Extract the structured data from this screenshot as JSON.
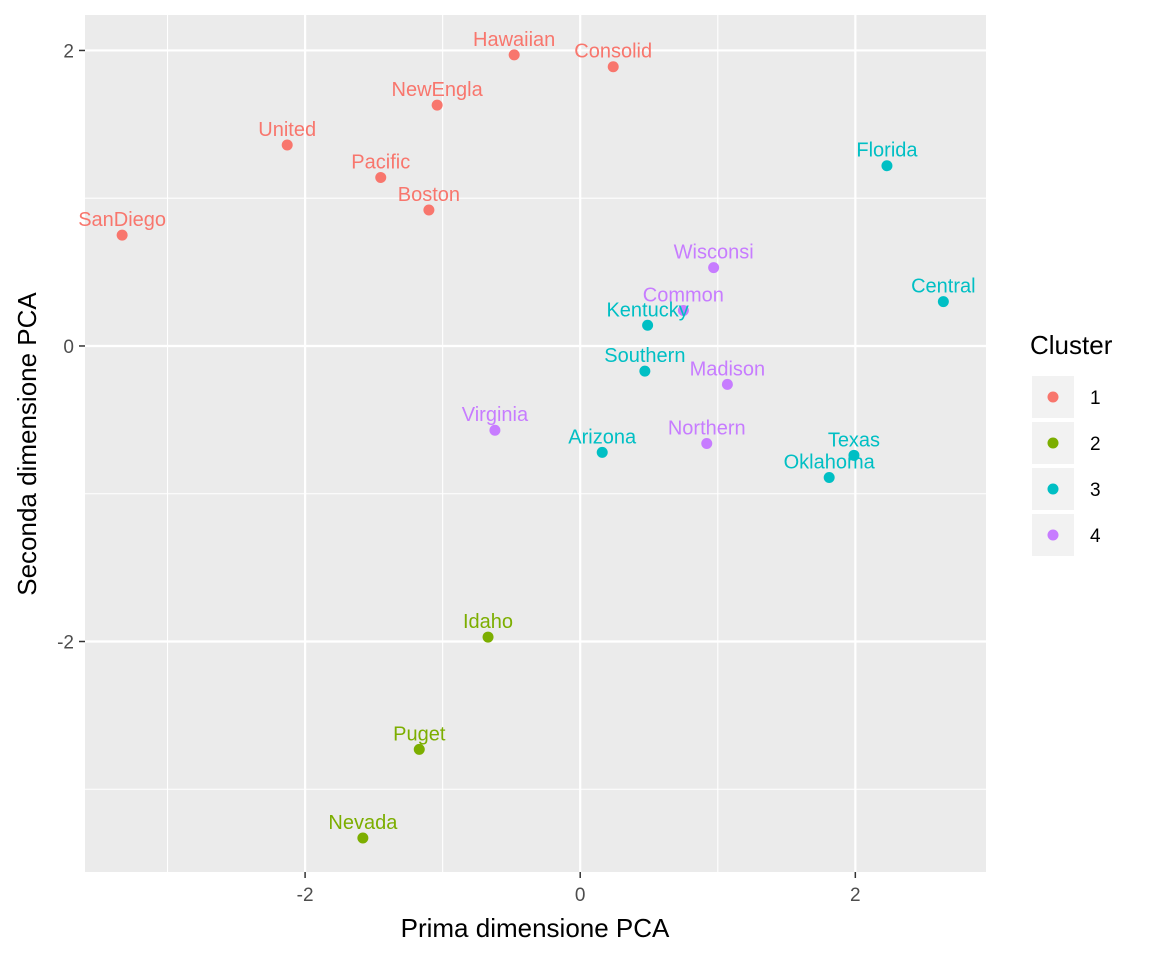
{
  "chart_data": {
    "type": "scatter",
    "title": "",
    "xlabel": "Prima dimensione PCA",
    "ylabel": "Seconda dimensione PCA",
    "xlim": [
      -3.6,
      2.95
    ],
    "ylim": [
      -3.56,
      2.24
    ],
    "xticks": [
      -2,
      0,
      2
    ],
    "yticks": [
      -2,
      0,
      2
    ],
    "xtick_labels": [
      "-2",
      "0",
      "2"
    ],
    "ytick_labels": [
      "-2",
      "0",
      "2"
    ],
    "grid": true,
    "legend": {
      "title": "Cluster",
      "position": "right",
      "entries": [
        {
          "label": "1",
          "color": "#F8766D"
        },
        {
          "label": "2",
          "color": "#7CAE00"
        },
        {
          "label": "3",
          "color": "#00BFC4"
        },
        {
          "label": "4",
          "color": "#C77CFF"
        }
      ]
    },
    "points": [
      {
        "label": "Hawaiian",
        "x": -0.48,
        "y": 1.97,
        "cluster": "1"
      },
      {
        "label": "Consolid",
        "x": 0.24,
        "y": 1.89,
        "cluster": "1"
      },
      {
        "label": "NewEngla",
        "x": -1.04,
        "y": 1.63,
        "cluster": "1"
      },
      {
        "label": "United",
        "x": -2.13,
        "y": 1.36,
        "cluster": "1"
      },
      {
        "label": "Pacific",
        "x": -1.45,
        "y": 1.14,
        "cluster": "1"
      },
      {
        "label": "Boston",
        "x": -1.1,
        "y": 0.92,
        "cluster": "1"
      },
      {
        "label": "SanDiego",
        "x": -3.33,
        "y": 0.75,
        "cluster": "1"
      },
      {
        "label": "Idaho",
        "x": -0.67,
        "y": -1.97,
        "cluster": "2"
      },
      {
        "label": "Puget",
        "x": -1.17,
        "y": -2.73,
        "cluster": "2"
      },
      {
        "label": "Nevada",
        "x": -1.58,
        "y": -3.33,
        "cluster": "2"
      },
      {
        "label": "Florida",
        "x": 2.23,
        "y": 1.22,
        "cluster": "3"
      },
      {
        "label": "Central",
        "x": 2.64,
        "y": 0.3,
        "cluster": "3"
      },
      {
        "label": "Kentucky",
        "x": 0.49,
        "y": 0.14,
        "cluster": "3"
      },
      {
        "label": "Southern",
        "x": 0.47,
        "y": -0.17,
        "cluster": "3"
      },
      {
        "label": "Arizona",
        "x": 0.16,
        "y": -0.72,
        "cluster": "3"
      },
      {
        "label": "Texas",
        "x": 1.99,
        "y": -0.74,
        "cluster": "3"
      },
      {
        "label": "Oklahoma",
        "x": 1.81,
        "y": -0.89,
        "cluster": "3"
      },
      {
        "label": "Wisconsi",
        "x": 0.97,
        "y": 0.53,
        "cluster": "4"
      },
      {
        "label": "Common",
        "x": 0.75,
        "y": 0.24,
        "cluster": "4"
      },
      {
        "label": "Madison",
        "x": 1.07,
        "y": -0.26,
        "cluster": "4"
      },
      {
        "label": "Virginia",
        "x": -0.62,
        "y": -0.57,
        "cluster": "4"
      },
      {
        "label": "Northern",
        "x": 0.92,
        "y": -0.66,
        "cluster": "4"
      }
    ]
  }
}
